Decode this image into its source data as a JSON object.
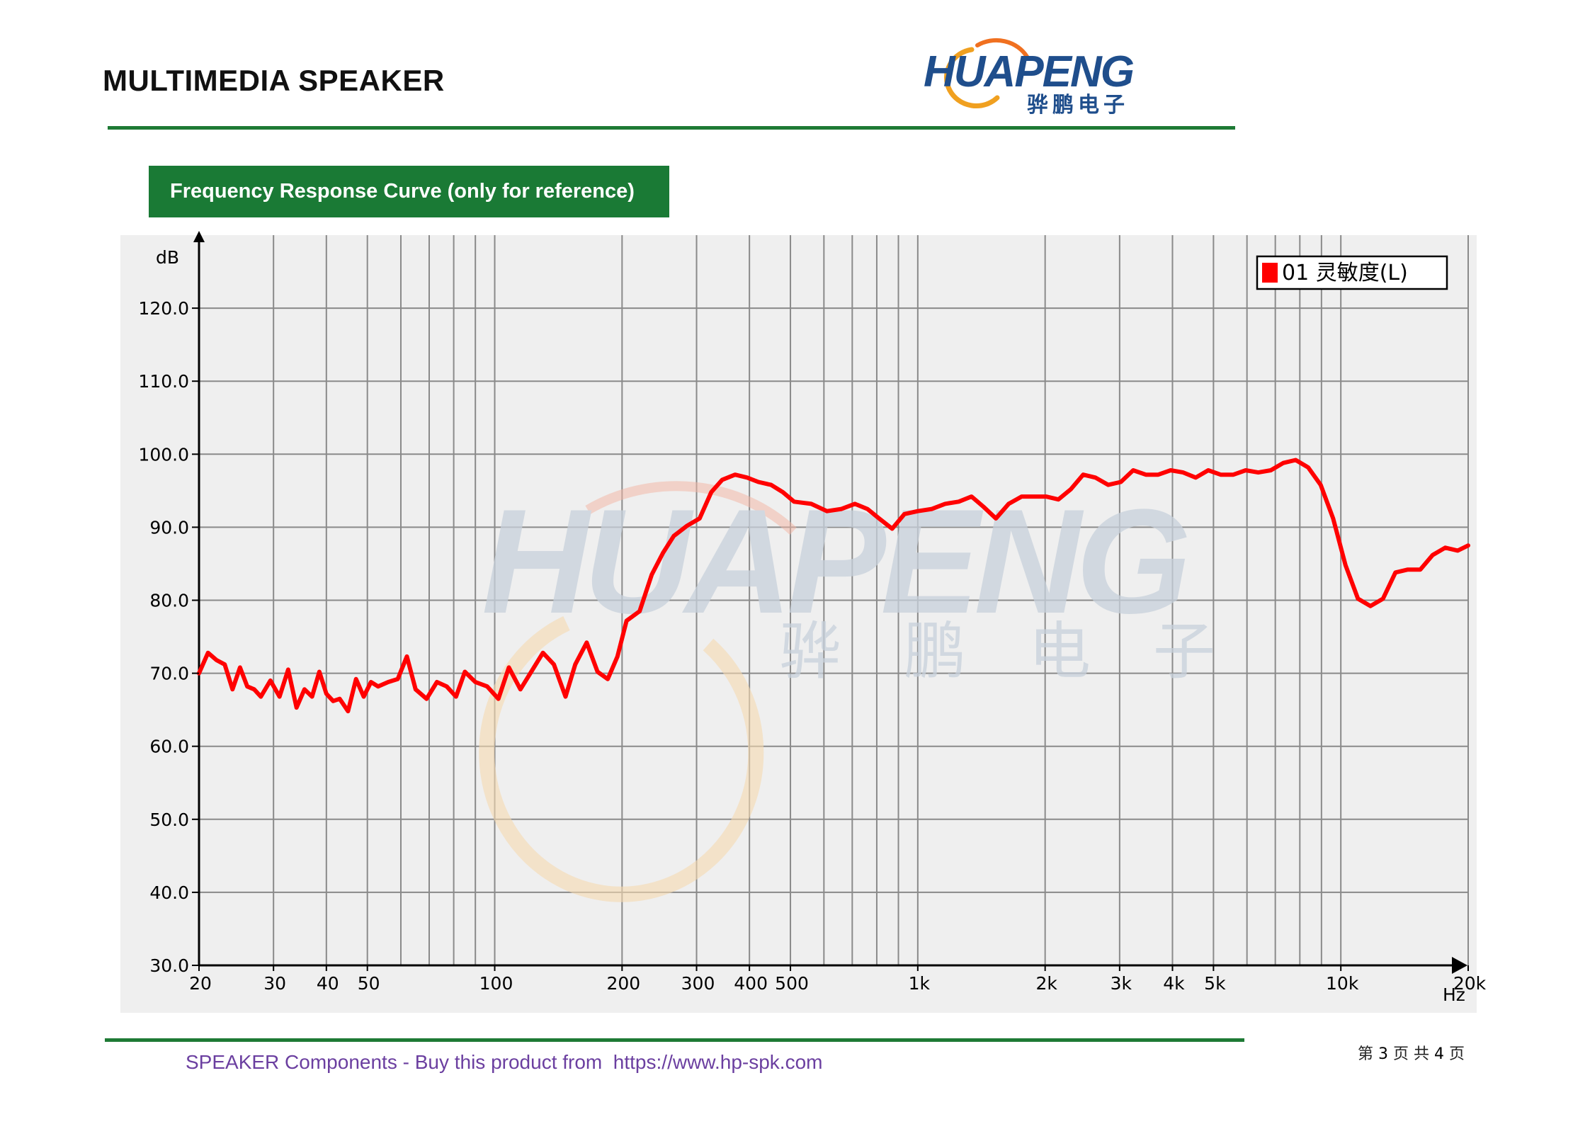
{
  "header": {
    "title": "MULTIMEDIA SPEAKER",
    "logo_text": "HUAPENG",
    "logo_subtext": "骅鹏电子"
  },
  "section": {
    "banner": "Frequency Response Curve (only for reference)"
  },
  "watermark": {
    "text": "HUAPENG",
    "subtext": "骅 鹏 电 子"
  },
  "chart_data": {
    "type": "line",
    "title": "",
    "xlabel": "Hz",
    "ylabel": "dB",
    "x_scale": "log",
    "xlim": [
      20,
      20000
    ],
    "ylim": [
      30,
      130
    ],
    "x_ticks": [
      {
        "value": 20,
        "label": "20"
      },
      {
        "value": 30,
        "label": "30"
      },
      {
        "value": 40,
        "label": "40"
      },
      {
        "value": 50,
        "label": "50"
      },
      {
        "value": 100,
        "label": "100"
      },
      {
        "value": 200,
        "label": "200"
      },
      {
        "value": 300,
        "label": "300"
      },
      {
        "value": 400,
        "label": "400"
      },
      {
        "value": 500,
        "label": "500"
      },
      {
        "value": 1000,
        "label": "1k"
      },
      {
        "value": 2000,
        "label": "2k"
      },
      {
        "value": 3000,
        "label": "3k"
      },
      {
        "value": 4000,
        "label": "4k"
      },
      {
        "value": 5000,
        "label": "5k"
      },
      {
        "value": 10000,
        "label": "10k"
      },
      {
        "value": 20000,
        "label": "20k"
      }
    ],
    "y_ticks": [
      {
        "value": 30,
        "label": "30.0"
      },
      {
        "value": 40,
        "label": "40.0"
      },
      {
        "value": 50,
        "label": "50.0"
      },
      {
        "value": 60,
        "label": "60.0"
      },
      {
        "value": 70,
        "label": "70.0"
      },
      {
        "value": 80,
        "label": "80.0"
      },
      {
        "value": 90,
        "label": "90.0"
      },
      {
        "value": 100,
        "label": "100.0"
      },
      {
        "value": 110,
        "label": "110.0"
      },
      {
        "value": 120,
        "label": "120.0"
      }
    ],
    "grid": true,
    "legend_position": "top-right",
    "series": [
      {
        "name": "01 灵敏度(L)",
        "color": "#ff0000",
        "points": [
          [
            20,
            70
          ],
          [
            21,
            72.8
          ],
          [
            22,
            71.8
          ],
          [
            23,
            71.2
          ],
          [
            24,
            67.8
          ],
          [
            25,
            70.8
          ],
          [
            26,
            68.2
          ],
          [
            27,
            67.8
          ],
          [
            28,
            66.8
          ],
          [
            29.5,
            69
          ],
          [
            31,
            66.8
          ],
          [
            32.5,
            70.5
          ],
          [
            34,
            65.3
          ],
          [
            35.5,
            67.8
          ],
          [
            37,
            66.8
          ],
          [
            38.5,
            70.2
          ],
          [
            40,
            67.2
          ],
          [
            41.5,
            66.2
          ],
          [
            43,
            66.5
          ],
          [
            45,
            64.8
          ],
          [
            47,
            69.2
          ],
          [
            49,
            66.8
          ],
          [
            51,
            68.8
          ],
          [
            53,
            68.2
          ],
          [
            56,
            68.8
          ],
          [
            59,
            69.2
          ],
          [
            62,
            72.3
          ],
          [
            65,
            67.8
          ],
          [
            69,
            66.5
          ],
          [
            73,
            68.8
          ],
          [
            77,
            68.2
          ],
          [
            81,
            66.8
          ],
          [
            85,
            70.2
          ],
          [
            90,
            68.8
          ],
          [
            96,
            68.2
          ],
          [
            102,
            66.5
          ],
          [
            108,
            70.8
          ],
          [
            115,
            67.8
          ],
          [
            122,
            70.2
          ],
          [
            130,
            72.8
          ],
          [
            138,
            71.2
          ],
          [
            147,
            66.8
          ],
          [
            155,
            71.2
          ],
          [
            165,
            74.2
          ],
          [
            175,
            70.2
          ],
          [
            185,
            69.2
          ],
          [
            195,
            72.3
          ],
          [
            205,
            77.2
          ],
          [
            220,
            78.5
          ],
          [
            235,
            83.5
          ],
          [
            250,
            86.5
          ],
          [
            265,
            88.8
          ],
          [
            285,
            90.2
          ],
          [
            305,
            91.2
          ],
          [
            325,
            94.8
          ],
          [
            345,
            96.5
          ],
          [
            370,
            97.2
          ],
          [
            395,
            96.8
          ],
          [
            420,
            96.2
          ],
          [
            450,
            95.8
          ],
          [
            480,
            94.8
          ],
          [
            510,
            93.5
          ],
          [
            560,
            93.2
          ],
          [
            610,
            92.2
          ],
          [
            660,
            92.5
          ],
          [
            710,
            93.2
          ],
          [
            760,
            92.5
          ],
          [
            810,
            91.2
          ],
          [
            870,
            89.8
          ],
          [
            930,
            91.8
          ],
          [
            1000,
            92.2
          ],
          [
            1080,
            92.5
          ],
          [
            1160,
            93.2
          ],
          [
            1250,
            93.5
          ],
          [
            1340,
            94.2
          ],
          [
            1430,
            92.8
          ],
          [
            1530,
            91.2
          ],
          [
            1640,
            93.2
          ],
          [
            1760,
            94.2
          ],
          [
            1880,
            94.2
          ],
          [
            2010,
            94.2
          ],
          [
            2150,
            93.8
          ],
          [
            2300,
            95.2
          ],
          [
            2460,
            97.2
          ],
          [
            2630,
            96.8
          ],
          [
            2820,
            95.8
          ],
          [
            3020,
            96.2
          ],
          [
            3230,
            97.8
          ],
          [
            3460,
            97.2
          ],
          [
            3700,
            97.2
          ],
          [
            3960,
            97.8
          ],
          [
            4240,
            97.5
          ],
          [
            4540,
            96.8
          ],
          [
            4860,
            97.8
          ],
          [
            5200,
            97.2
          ],
          [
            5570,
            97.2
          ],
          [
            5960,
            97.8
          ],
          [
            6380,
            97.5
          ],
          [
            6830,
            97.8
          ],
          [
            7310,
            98.8
          ],
          [
            7820,
            99.2
          ],
          [
            8370,
            98.2
          ],
          [
            8960,
            95.8
          ],
          [
            9590,
            91.2
          ],
          [
            10260,
            84.8
          ],
          [
            10980,
            80.2
          ],
          [
            11750,
            79.2
          ],
          [
            12580,
            80.2
          ],
          [
            13460,
            83.8
          ],
          [
            14400,
            84.2
          ],
          [
            15410,
            84.2
          ],
          [
            16490,
            86.2
          ],
          [
            17650,
            87.2
          ],
          [
            18890,
            86.8
          ],
          [
            20000,
            87.5
          ]
        ]
      }
    ]
  },
  "footer": {
    "text": "SPEAKER Components - Buy this product from  https://www.hp-spk.com",
    "page_prefix": "第",
    "page_current": "3",
    "page_mid": "页 共",
    "page_total": "4",
    "page_suffix": "页"
  },
  "colors": {
    "brand_green": "#1a7a35",
    "curve_red": "#ff0000",
    "footer_purple": "#6b3fa0",
    "logo_blue": "#1f4e8c",
    "logo_orange": "#f39c12"
  }
}
